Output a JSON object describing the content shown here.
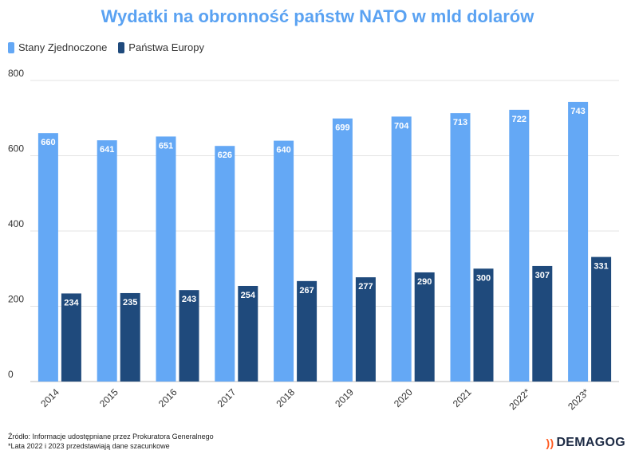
{
  "colors": {
    "us": "#64a8f5",
    "europe": "#1f4a7c",
    "title": "#5aa2f2",
    "brand_accent": "#ff5a1f"
  },
  "chart_data": {
    "type": "bar",
    "title": "Wydatki na obronność państw NATO w mld dolarów",
    "xlabel": "",
    "ylabel": "",
    "ylim": [
      0,
      800
    ],
    "yticks": [
      0,
      200,
      400,
      600,
      800
    ],
    "grid": true,
    "legend_position": "top-left",
    "categories": [
      "2014",
      "2015",
      "2016",
      "2017",
      "2018",
      "2019",
      "2020",
      "2021",
      "2022*",
      "2023*"
    ],
    "series": [
      {
        "name": "Stany Zjednoczone",
        "values": [
          660,
          641,
          651,
          626,
          640,
          699,
          704,
          713,
          722,
          743
        ]
      },
      {
        "name": "Państwa Europy",
        "values": [
          234,
          235,
          243,
          254,
          267,
          277,
          290,
          300,
          307,
          331
        ]
      }
    ]
  },
  "footer": {
    "source": "Źródło: Informacje udostępniane przez Prokuratora Generalnego",
    "note": "*Lata 2022 i 2023 przedstawiają dane szacunkowe"
  },
  "brand": {
    "mark": "))",
    "name": "DEMAGOG"
  }
}
